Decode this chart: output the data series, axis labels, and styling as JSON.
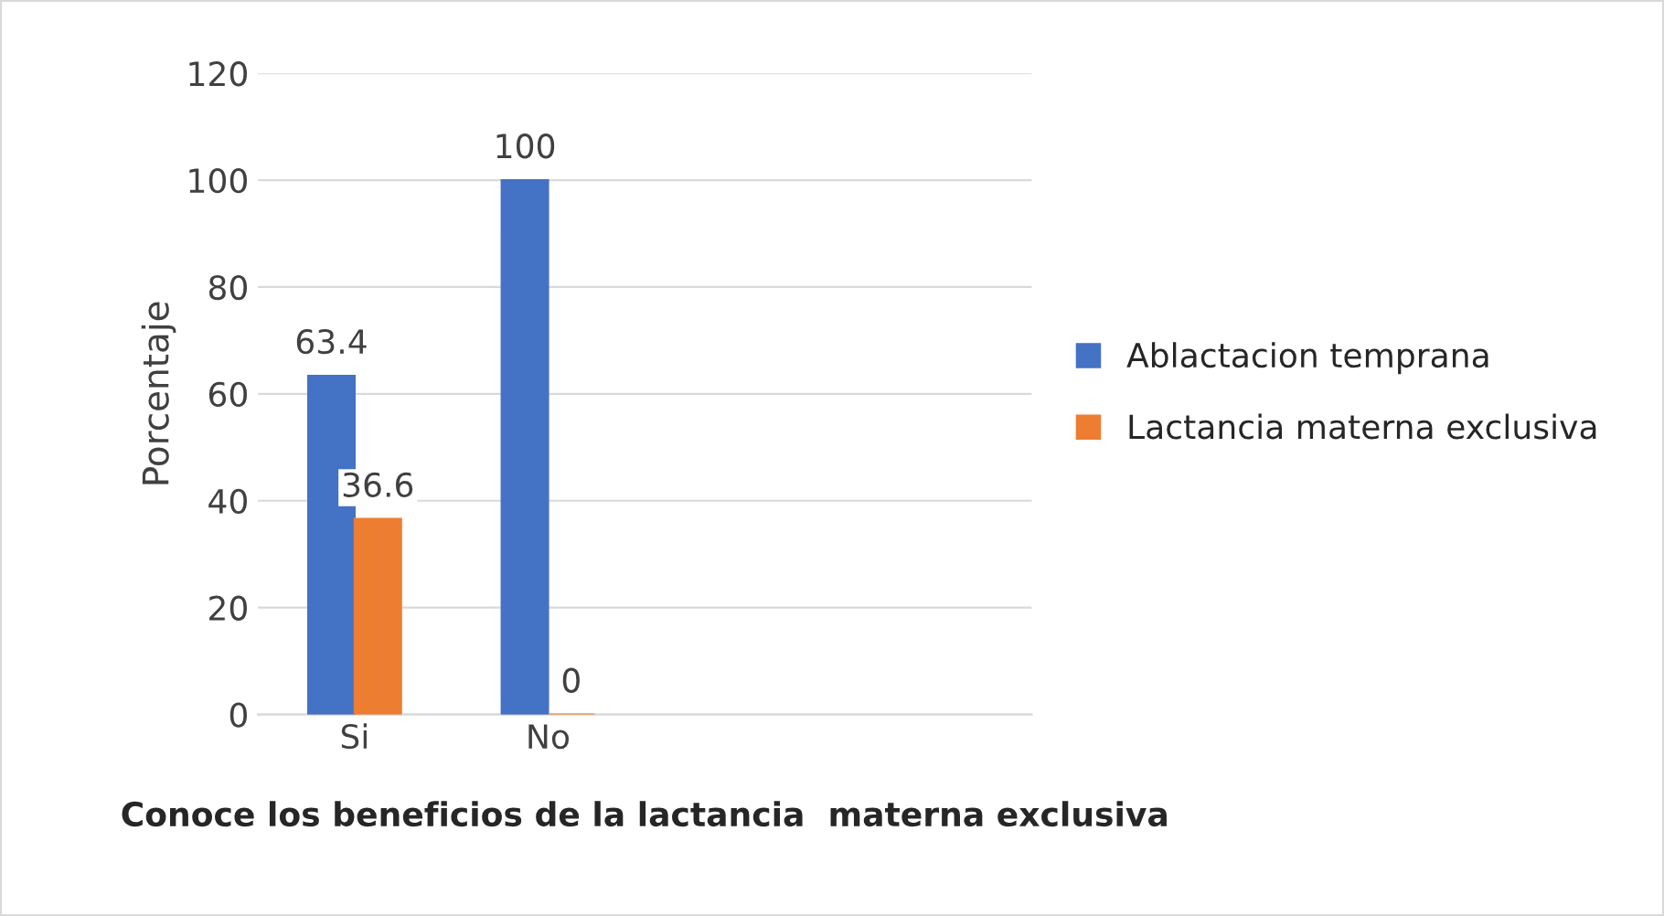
{
  "chart_data": {
    "type": "bar",
    "xlabel": "Conoce los beneficios de la lactancia  materna exclusiva",
    "ylabel": "Porcentaje",
    "categories": [
      "Si",
      "No",
      null,
      null
    ],
    "series": [
      {
        "name": "Ablactacion temprana",
        "color": "#4472c4",
        "values": [
          63.4,
          100,
          null,
          null
        ]
      },
      {
        "name": "Lactancia materna exclusiva",
        "color": "#ed7d31",
        "values": [
          36.6,
          0,
          null,
          null
        ]
      }
    ],
    "ylim": [
      0,
      120
    ],
    "yticks": [
      0,
      20,
      40,
      60,
      80,
      100,
      120
    ],
    "grid": "y",
    "legend": "right",
    "data_labels": true
  }
}
